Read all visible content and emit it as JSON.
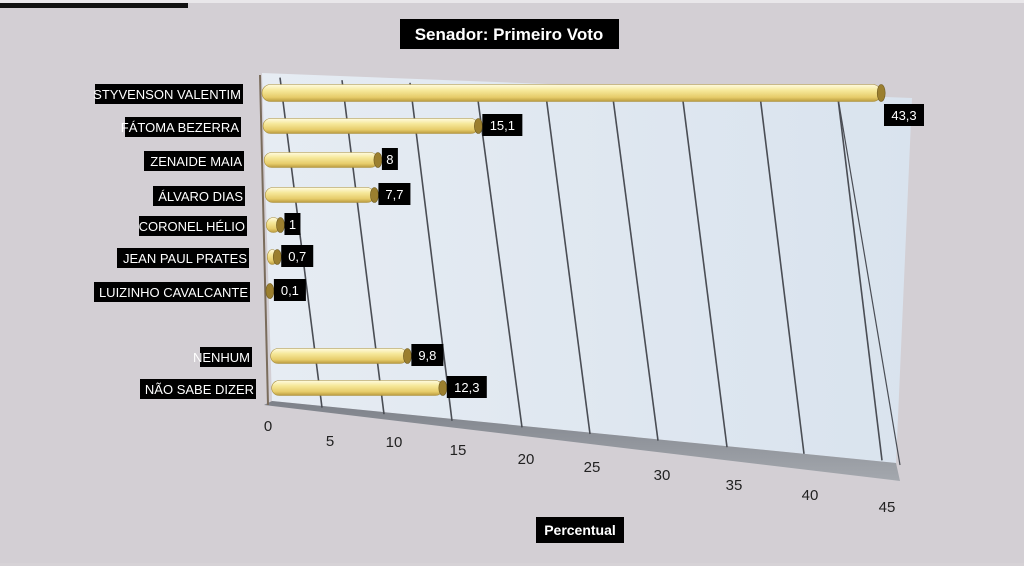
{
  "chart_data": {
    "type": "bar",
    "orientation": "horizontal",
    "title": "Senador: Primeiro Voto",
    "xlabel": "Percentual",
    "ylabel": "",
    "xlim": [
      0,
      45
    ],
    "x_ticks": [
      0,
      5,
      10,
      15,
      20,
      25,
      30,
      35,
      40,
      45
    ],
    "grid": true,
    "categories": [
      "STYVENSON VALENTIM",
      "FÁTOMA BEZERRA",
      "ZENAIDE MAIA",
      "ÁLVARO DIAS",
      "CORONEL HÉLIO",
      "JEAN PAUL PRATES",
      "LUIZINHO CAVALCANTE",
      "NENHUM",
      "NÃO SABE DIZER"
    ],
    "values": [
      43.3,
      15.1,
      8,
      7.7,
      1,
      0.7,
      0.1,
      9.8,
      12.3
    ],
    "value_labels": [
      "43,3",
      "15,1",
      "8",
      "7,7",
      "1",
      "0,7",
      "0,1",
      "9,8",
      "12,3"
    ],
    "colors": {
      "bar": "#f2e08c",
      "bar_dark": "#c9a94a",
      "plot_wall": "#dde6f0",
      "floor": "#8f949b",
      "label_bg": "#000000"
    }
  }
}
